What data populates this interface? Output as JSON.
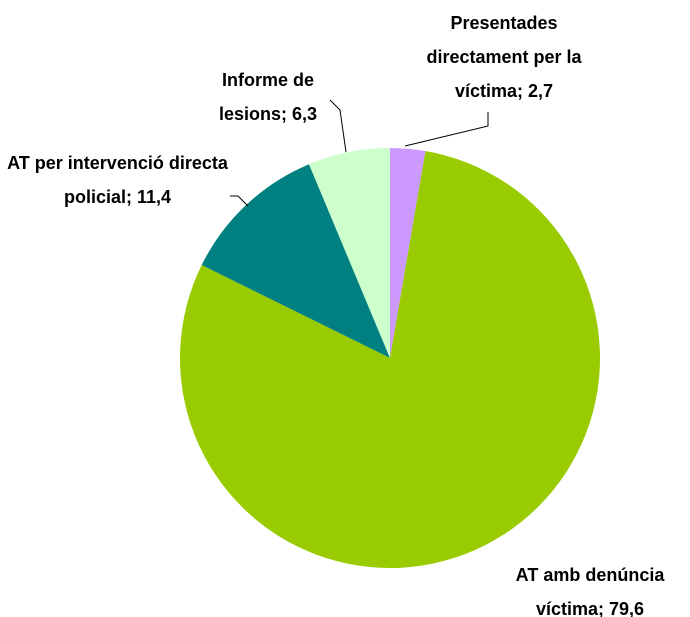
{
  "chart_data": {
    "type": "pie",
    "categories": [
      "Presentades directament per la víctima",
      "AT amb denúncia víctima",
      "AT per intervenció directa policial",
      "Informe de lesions"
    ],
    "values": [
      2.7,
      79.6,
      11.4,
      6.3
    ],
    "value_labels": [
      "2,7",
      "79,6",
      "11,4",
      "6,3"
    ],
    "label_separator": ";",
    "colors": [
      "#cc99ff",
      "#99cc00",
      "#008080",
      "#ccffcc"
    ]
  }
}
